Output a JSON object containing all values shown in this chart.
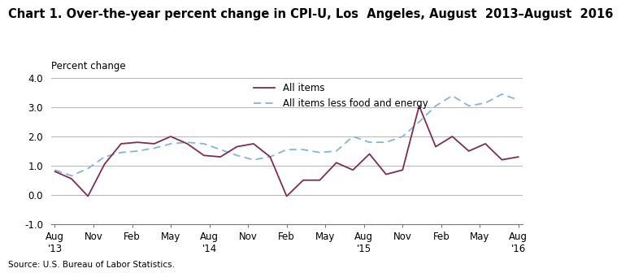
{
  "title": "Chart 1. Over-the-year percent change in CPI-U, Los  Angeles, August  2013–August  2016",
  "ylabel": "Percent change",
  "source": "Source: U.S. Bureau of Labor Statistics.",
  "ylim": [
    -1.0,
    4.0
  ],
  "yticks": [
    -1.0,
    0.0,
    1.0,
    2.0,
    3.0,
    4.0
  ],
  "x_labels": [
    "Aug\n'13",
    "Nov",
    "Feb",
    "May",
    "Aug\n'14",
    "Nov",
    "Feb",
    "May",
    "Aug\n'15",
    "Nov",
    "Feb",
    "May",
    "Aug\n'16"
  ],
  "x_tick_positions": [
    0,
    3,
    6,
    9,
    12,
    15,
    18,
    21,
    24,
    27,
    30,
    33,
    36
  ],
  "all_items": [
    0.8,
    0.55,
    -0.05,
    1.05,
    1.75,
    1.8,
    1.75,
    2.0,
    1.75,
    1.35,
    1.3,
    1.65,
    1.75,
    1.3,
    -0.05,
    0.5,
    0.5,
    1.1,
    0.85,
    1.4,
    0.7,
    0.85,
    3.05,
    1.65,
    2.0,
    1.5,
    1.75,
    1.2,
    1.3
  ],
  "all_items_less": [
    0.85,
    0.65,
    0.9,
    1.3,
    1.45,
    1.5,
    1.6,
    1.75,
    1.8,
    1.75,
    1.55,
    1.35,
    1.2,
    1.3,
    1.55,
    1.55,
    1.45,
    1.5,
    2.0,
    1.8,
    1.8,
    2.0,
    2.5,
    3.05,
    3.4,
    3.05,
    3.15,
    3.45,
    3.25
  ],
  "all_items_color": "#7b2d52",
  "all_items_less_color": "#85b4d4",
  "bg_color": "#ffffff",
  "grid_color": "#aaaaaa",
  "title_fontsize": 10.5,
  "label_fontsize": 8.5,
  "tick_fontsize": 8.5
}
